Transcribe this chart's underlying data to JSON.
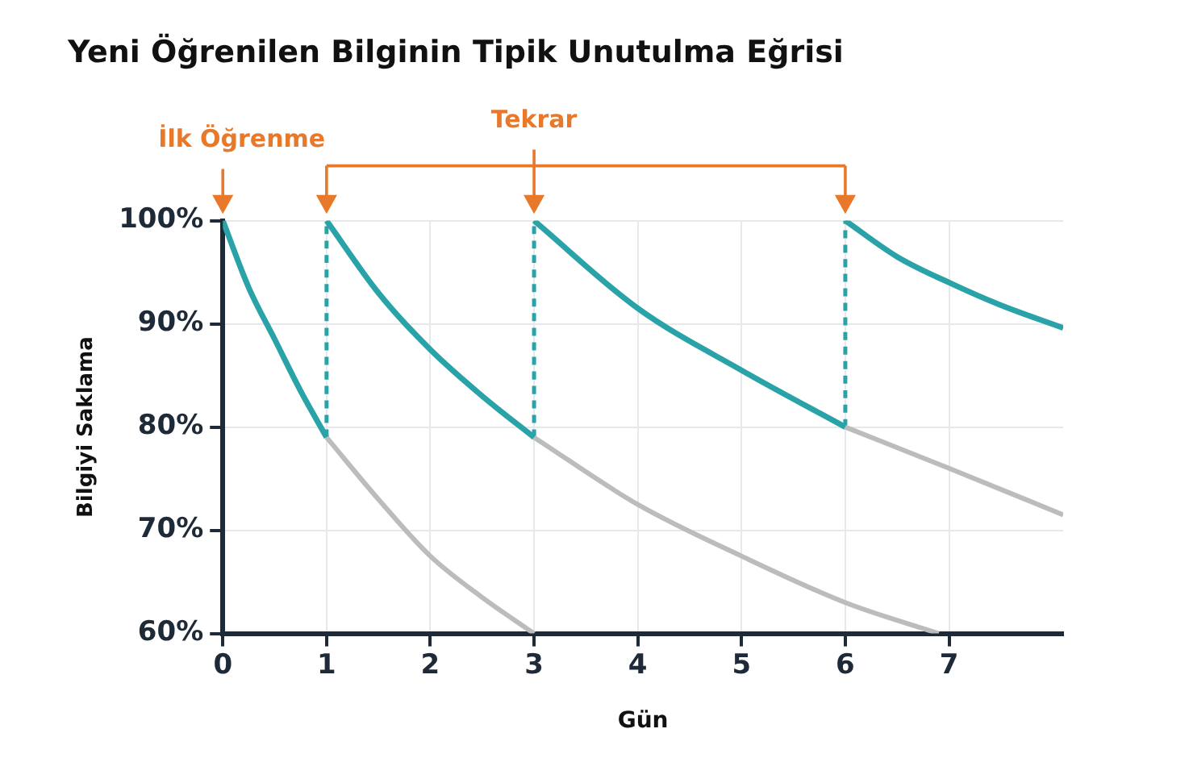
{
  "chart_data": {
    "type": "line",
    "title": "Yeni Öğrenilen Bilginin Tipik Unutulma Eğrisi",
    "xlabel": "Gün",
    "ylabel": "Bilgiyi Saklama",
    "xlim": [
      0,
      8.1
    ],
    "xticks": [
      0,
      1,
      2,
      3,
      4,
      5,
      6,
      7
    ],
    "ylim": [
      60,
      100
    ],
    "yticks": [
      {
        "value": 60,
        "label": "60%"
      },
      {
        "value": 70,
        "label": "70%"
      },
      {
        "value": 80,
        "label": "80%"
      },
      {
        "value": 90,
        "label": "90%"
      },
      {
        "value": 100,
        "label": "100%"
      }
    ],
    "grid": true,
    "legend": false,
    "marker": "none",
    "line_style": "solid",
    "annotations": [
      "İlk Öğrenme",
      "Tekrar"
    ],
    "series": [
      {
        "color": "#bcbcbc",
        "x": [
          1,
          1.5,
          2,
          2.5,
          3
        ],
        "values": [
          79,
          73,
          67.5,
          63.5,
          60
        ]
      },
      {
        "color": "#bcbcbc",
        "x": [
          3,
          4,
          5,
          6,
          6.9
        ],
        "values": [
          79,
          72.5,
          67.5,
          63,
          60
        ]
      },
      {
        "color": "#bcbcbc",
        "x": [
          6,
          7,
          8.1
        ],
        "values": [
          80,
          76,
          71.5
        ]
      },
      {
        "color": "#2aa3a8",
        "x": [
          0,
          0.25,
          0.5,
          0.75,
          1
        ],
        "values": [
          100,
          93.5,
          88.5,
          83.5,
          79
        ]
      },
      {
        "color": "#2aa3a8",
        "x": [
          1,
          1.5,
          2,
          2.5,
          3
        ],
        "values": [
          100,
          93,
          87.5,
          83,
          79
        ]
      },
      {
        "color": "#2aa3a8",
        "x": [
          3,
          4,
          5,
          6
        ],
        "values": [
          100,
          91.5,
          85.5,
          80
        ]
      },
      {
        "color": "#2aa3a8",
        "x": [
          6,
          6.5,
          7,
          7.5,
          8.1
        ],
        "values": [
          100,
          96.5,
          94,
          91.8,
          89.6
        ]
      },
      {
        "color": "#2aa3a8",
        "line_style": "dashed",
        "x": [
          1,
          1
        ],
        "values": [
          79,
          100
        ]
      },
      {
        "color": "#2aa3a8",
        "line_style": "dashed",
        "x": [
          3,
          3
        ],
        "values": [
          79,
          100
        ]
      },
      {
        "color": "#2aa3a8",
        "line_style": "dashed",
        "x": [
          6,
          6
        ],
        "values": [
          80,
          100
        ]
      }
    ]
  }
}
